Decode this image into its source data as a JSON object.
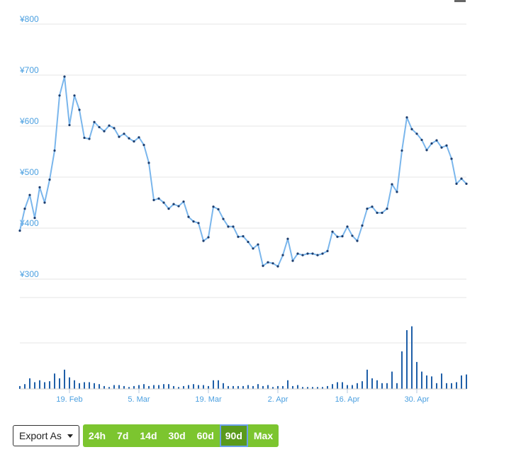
{
  "chart_data": {
    "type": "line",
    "price_series": {
      "y_ticks": [
        "¥800",
        "¥700",
        "¥600",
        "¥500",
        "¥400",
        "¥300"
      ],
      "ylim": [
        260,
        820
      ],
      "values": [
        395,
        438,
        465,
        420,
        480,
        450,
        495,
        552,
        660,
        697,
        602,
        660,
        632,
        577,
        575,
        608,
        598,
        590,
        601,
        596,
        579,
        585,
        576,
        570,
        578,
        563,
        528,
        455,
        458,
        450,
        438,
        447,
        443,
        452,
        422,
        413,
        410,
        375,
        382,
        442,
        437,
        418,
        403,
        403,
        383,
        384,
        373,
        360,
        368,
        326,
        333,
        331,
        325,
        347,
        379,
        336,
        350,
        347,
        350,
        350,
        347,
        350,
        355,
        393,
        383,
        384,
        403,
        385,
        375,
        405,
        438,
        442,
        430,
        430,
        438,
        486,
        471,
        552,
        617,
        594,
        585,
        573,
        553,
        566,
        572,
        558,
        562,
        536,
        487,
        497,
        487
      ]
    },
    "volume_series": {
      "values": [
        6,
        10,
        22,
        14,
        18,
        14,
        16,
        32,
        22,
        40,
        24,
        18,
        12,
        14,
        14,
        12,
        10,
        6,
        4,
        8,
        8,
        6,
        4,
        6,
        8,
        10,
        6,
        8,
        8,
        10,
        10,
        6,
        4,
        6,
        8,
        10,
        8,
        8,
        6,
        18,
        18,
        12,
        6,
        6,
        6,
        6,
        8,
        6,
        10,
        6,
        8,
        4,
        6,
        6,
        18,
        6,
        8,
        4,
        4,
        4,
        4,
        4,
        6,
        10,
        14,
        14,
        8,
        8,
        12,
        16,
        40,
        22,
        18,
        12,
        12,
        36,
        12,
        78,
        122,
        130,
        56,
        36,
        28,
        26,
        12,
        32,
        12,
        12,
        14,
        28,
        30
      ]
    },
    "x_ticks": [
      "19. Feb",
      "5. Mar",
      "19. Mar",
      "2. Apr",
      "16. Apr",
      "30. Apr"
    ],
    "colors": {
      "line": "#7ab6ec",
      "point": "#1c3d6e",
      "volume": "#1f5fa8",
      "grid": "#e6e6e6",
      "axis_text": "#4a9fe0"
    }
  },
  "toolbar": {
    "export_label": "Export As",
    "ranges": [
      "24h",
      "7d",
      "14d",
      "30d",
      "60d",
      "90d",
      "Max"
    ],
    "active_range": "90d"
  }
}
